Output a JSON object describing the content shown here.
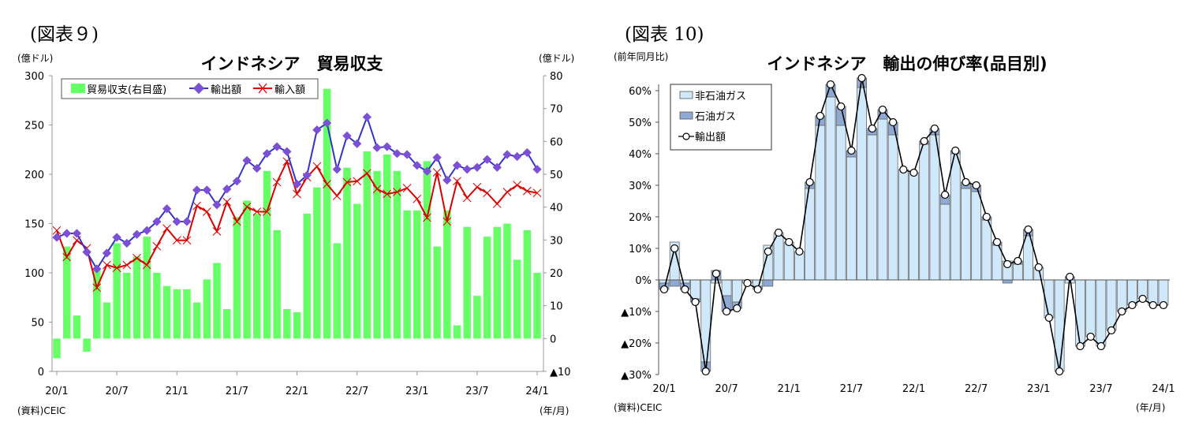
{
  "figures": [
    {
      "label": "(図表９)"
    },
    {
      "label": "(図表 10)"
    }
  ],
  "chart_data": [
    {
      "type": "bar",
      "title": "インドネシア　貿易収支",
      "ylabel_left": "(億ドル)",
      "ylabel_right": "(億ドル)",
      "xlabel": "(年/月)",
      "source": "(資料)CEIC",
      "ylim_left": [
        0,
        300
      ],
      "ylim_right": [
        -10,
        80
      ],
      "yticks_left": [
        "0",
        "50",
        "100",
        "150",
        "200",
        "250",
        "300"
      ],
      "yticks_right": [
        "▲10",
        "0",
        "10",
        "20",
        "30",
        "40",
        "50",
        "60",
        "70",
        "80"
      ],
      "xticks": [
        "20/1",
        "20/7",
        "21/1",
        "21/7",
        "22/1",
        "22/7",
        "23/1",
        "23/7",
        "24/1"
      ],
      "legend": [
        "貿易収支(右目盛)",
        "輸出額",
        "輸入額"
      ],
      "legend_position": "top-left",
      "colors": {
        "balance": "#66ff66",
        "exports": "#3333cc",
        "export_marker": "#7b4fd6",
        "imports": "#dd0000"
      },
      "series": [
        {
          "name": "貿易収支(右目盛)",
          "axis": "right",
          "kind": "bar",
          "values": [
            -6,
            28,
            7,
            -4,
            21,
            11,
            29,
            20,
            25,
            31,
            20,
            16,
            15,
            15,
            11,
            18,
            23,
            9,
            37,
            42,
            38,
            51,
            33,
            9,
            8,
            38,
            46,
            76,
            29,
            52,
            41,
            57,
            51,
            56,
            51,
            39,
            39,
            54,
            28,
            39,
            4,
            34,
            13,
            31,
            34,
            35,
            24,
            33,
            20
          ]
        },
        {
          "name": "輸出額",
          "axis": "left",
          "kind": "line",
          "values": [
            136,
            140,
            140,
            121,
            104,
            120,
            136,
            130,
            139,
            143,
            152,
            165,
            152,
            152,
            184,
            184,
            169,
            185,
            193,
            214,
            206,
            221,
            228,
            223,
            190,
            199,
            245,
            252,
            205,
            239,
            231,
            258,
            227,
            228,
            221,
            220,
            209,
            203,
            217,
            194,
            209,
            205,
            207,
            215,
            207,
            220,
            218,
            222,
            205
          ]
        },
        {
          "name": "輸入額",
          "axis": "left",
          "kind": "line",
          "values": [
            143,
            116,
            133,
            125,
            85,
            108,
            105,
            108,
            115,
            108,
            127,
            145,
            133,
            133,
            168,
            162,
            142,
            172,
            152,
            167,
            162,
            162,
            192,
            213,
            180,
            197,
            208,
            190,
            178,
            192,
            193,
            201,
            185,
            180,
            182,
            186,
            175,
            156,
            202,
            152,
            193,
            176,
            187,
            181,
            170,
            182,
            189,
            183,
            181
          ]
        }
      ]
    },
    {
      "type": "bar",
      "title": "インドネシア　輸出の伸び率(品目別)",
      "ylabel": "(前年同月比)",
      "xlabel": "(年/月)",
      "source": "(資料)CEIC",
      "ylim": [
        -30,
        65
      ],
      "yticks": [
        "▲30%",
        "▲20%",
        "▲10%",
        "0%",
        "10%",
        "20%",
        "30%",
        "40%",
        "50%",
        "60%"
      ],
      "xticks": [
        "20/1",
        "20/7",
        "21/1",
        "21/7",
        "22/1",
        "22/7",
        "23/1",
        "23/7",
        "24/1"
      ],
      "legend": [
        "非石油ガス",
        "石油ガス",
        "輸出額"
      ],
      "legend_position": "top-left",
      "colors": {
        "non_oil_gas": "#cfe9fb",
        "oil_gas": "#8eaad2",
        "total": "#000000"
      },
      "series": [
        {
          "name": "非石油ガス",
          "kind": "stacked-bar",
          "values": [
            -1,
            12,
            -1,
            -6,
            -26,
            -1,
            -5,
            -7,
            -1,
            -2,
            11,
            15,
            12,
            9,
            29,
            49,
            58,
            49,
            39,
            61,
            46,
            51,
            46,
            35,
            34,
            43,
            46,
            24,
            40,
            29,
            28,
            19,
            11,
            6,
            5,
            14,
            4,
            -12,
            -29,
            -1,
            -21,
            -18,
            -21,
            -16,
            -10,
            -8,
            -6,
            -8,
            -8
          ]
        },
        {
          "name": "石油ガス",
          "kind": "stacked-bar",
          "values": [
            -2,
            -2,
            -2,
            -1,
            -3,
            3,
            -5,
            -2,
            0,
            -1,
            -2,
            0,
            0,
            0,
            2,
            3,
            4,
            6,
            2,
            3,
            2,
            3,
            4,
            0,
            0,
            1,
            2,
            3,
            1,
            2,
            2,
            1,
            1,
            -1,
            1,
            2,
            0,
            0,
            0,
            1,
            0,
            0,
            0,
            0,
            0,
            0,
            0,
            0,
            0
          ]
        },
        {
          "name": "輸出額",
          "kind": "line",
          "values": [
            -3,
            10,
            -3,
            -7,
            -29,
            2,
            -10,
            -9,
            -1,
            -3,
            9,
            15,
            12,
            9,
            31,
            52,
            62,
            55,
            41,
            64,
            48,
            54,
            50,
            35,
            34,
            44,
            48,
            27,
            41,
            31,
            30,
            20,
            12,
            5,
            6,
            16,
            4,
            -12,
            -29,
            1,
            -21,
            -18,
            -21,
            -16,
            -10,
            -8,
            -6,
            -8,
            -8
          ]
        }
      ]
    }
  ]
}
